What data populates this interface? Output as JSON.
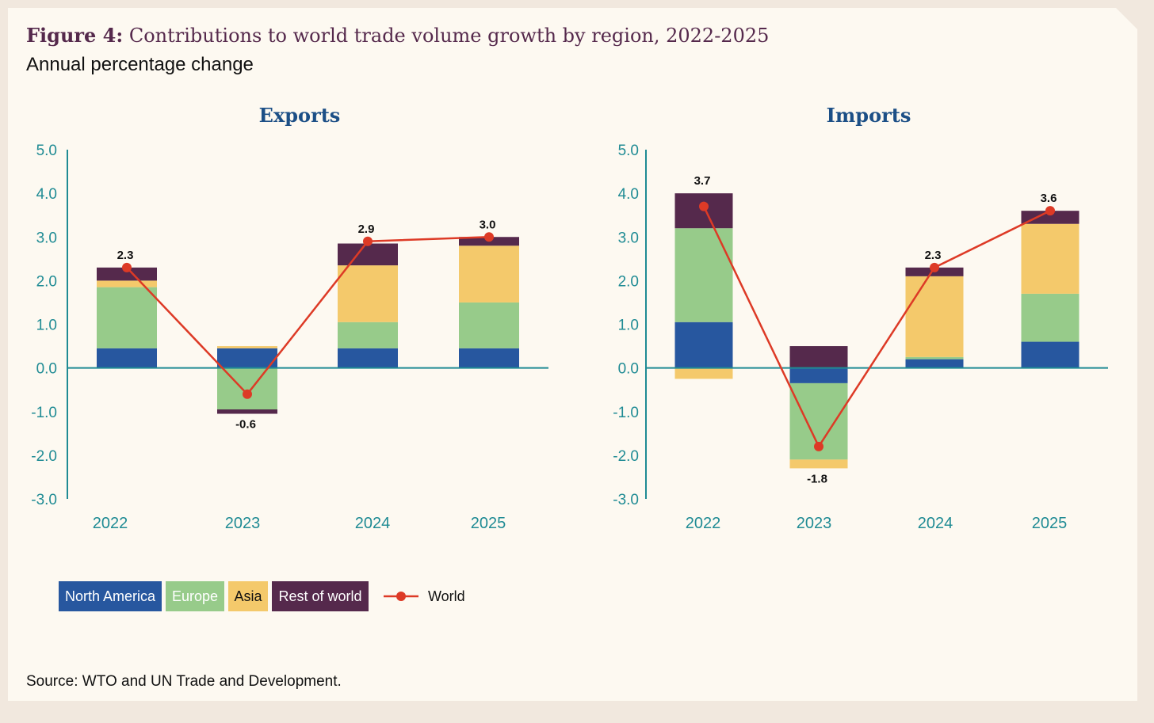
{
  "figure": {
    "label": "Figure 4:",
    "title": "Contributions to world trade volume growth by region, 2022-2025",
    "subtitle": "Annual percentage change",
    "source": "Source: WTO and UN Trade and Development."
  },
  "colors": {
    "North America": "#27579f",
    "Europe": "#97cb8a",
    "Asia": "#f4c96b",
    "Rest of world": "#55294c",
    "World": "#dd3a26",
    "axis": "#1f8b94",
    "panel_title": "#1c4f86"
  },
  "legend": [
    {
      "name": "North America",
      "text_color": "#ffffff"
    },
    {
      "name": "Europe",
      "text_color": "#ffffff"
    },
    {
      "name": "Asia",
      "text_color": "#111111"
    },
    {
      "name": "Rest of world",
      "text_color": "#ffffff"
    },
    {
      "name": "World",
      "kind": "line"
    }
  ],
  "chart_data": [
    {
      "type": "bar",
      "stacked": true,
      "title": "Exports",
      "categories": [
        "2022",
        "2023",
        "2024",
        "2025"
      ],
      "ylim": [
        -3.0,
        5.0
      ],
      "yticks": [
        "-3.0",
        "-2.0",
        "-1.0",
        "0.0",
        "1.0",
        "2.0",
        "3.0",
        "4.0",
        "5.0"
      ],
      "series": [
        {
          "name": "North America",
          "values": [
            0.45,
            0.45,
            0.45,
            0.45
          ]
        },
        {
          "name": "Europe",
          "values": [
            1.4,
            -0.95,
            0.6,
            1.05
          ]
        },
        {
          "name": "Asia",
          "values": [
            0.15,
            0.05,
            1.3,
            1.3
          ]
        },
        {
          "name": "Rest of world",
          "values": [
            0.3,
            -0.1,
            0.5,
            0.2
          ]
        }
      ],
      "line": {
        "name": "World",
        "values": [
          2.3,
          -0.6,
          2.9,
          3.0
        ],
        "labels": [
          "2.3",
          "-0.6",
          "2.9",
          "3.0"
        ]
      }
    },
    {
      "type": "bar",
      "stacked": true,
      "title": "Imports",
      "categories": [
        "2022",
        "2023",
        "2024",
        "2025"
      ],
      "ylim": [
        -3.0,
        5.0
      ],
      "yticks": [
        "-3.0",
        "-2.0",
        "-1.0",
        "0.0",
        "1.0",
        "2.0",
        "3.0",
        "4.0",
        "5.0"
      ],
      "series": [
        {
          "name": "North America",
          "values": [
            1.05,
            -0.35,
            0.2,
            0.6
          ]
        },
        {
          "name": "Europe",
          "values": [
            2.15,
            -1.75,
            0.05,
            1.1
          ]
        },
        {
          "name": "Asia",
          "values": [
            -0.25,
            -0.2,
            1.85,
            1.6
          ]
        },
        {
          "name": "Rest of world",
          "values": [
            0.8,
            0.5,
            0.2,
            0.3
          ]
        }
      ],
      "line": {
        "name": "World",
        "values": [
          3.7,
          -1.8,
          2.3,
          3.6
        ],
        "labels": [
          "3.7",
          "-1.8",
          "2.3",
          "3.6"
        ]
      }
    }
  ]
}
